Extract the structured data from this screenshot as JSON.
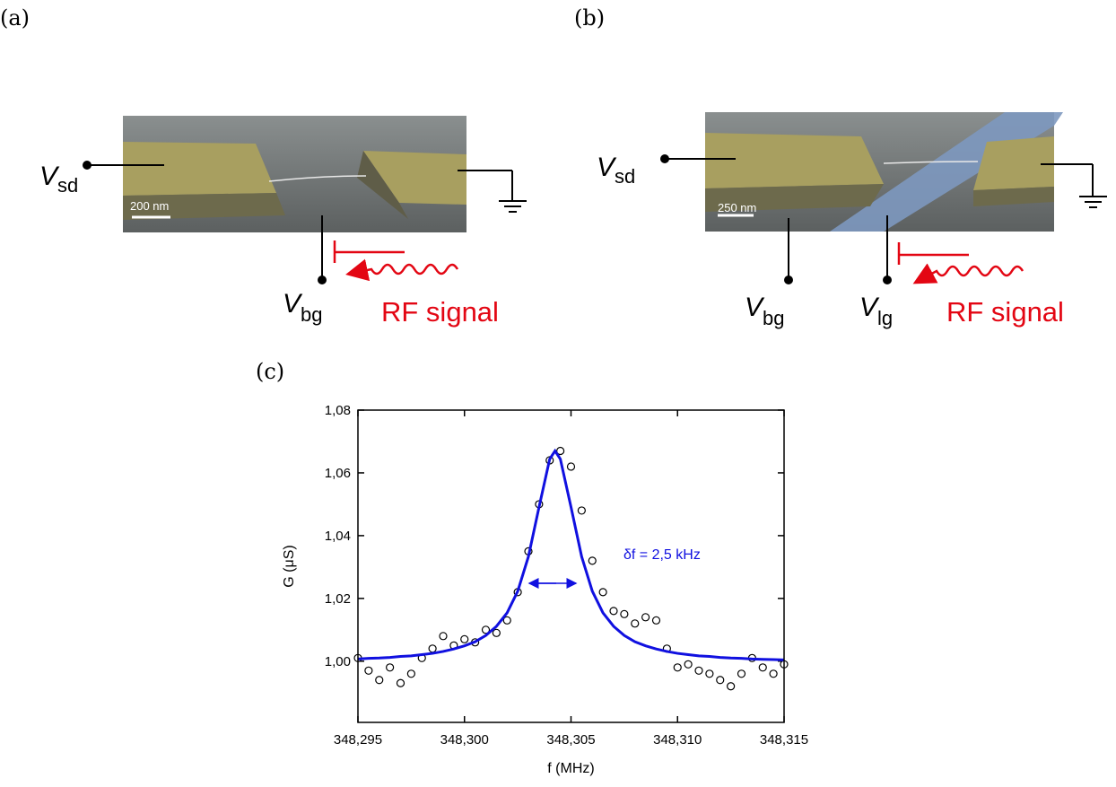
{
  "panel_labels": [
    "(a)",
    "(b)",
    "(c)"
  ],
  "panel_a": {
    "terminals": [
      {
        "symbol": "V",
        "subscript": "sd"
      },
      {
        "symbol": "V",
        "subscript": "bg"
      }
    ],
    "scale_bar": "200 nm",
    "signal": "RF signal"
  },
  "panel_b": {
    "terminals": [
      {
        "symbol": "V",
        "subscript": "sd"
      },
      {
        "symbol": "V",
        "subscript": "bg"
      },
      {
        "symbol": "V",
        "subscript": "lg"
      }
    ],
    "scale_bar": "250 nm",
    "signal": "RF signal"
  },
  "chart_data": {
    "type": "scatter",
    "x_label": "f (MHz)",
    "y_label": "G (μS)",
    "annotation": "δf = 2,5 kHz",
    "xlim": [
      348.295,
      348.315
    ],
    "ylim": [
      0.9805,
      1.08
    ],
    "xticks": [
      {
        "value": 348.295,
        "label": "348,295"
      },
      {
        "value": 348.3,
        "label": "348,300"
      },
      {
        "value": 348.305,
        "label": "348,305"
      },
      {
        "value": 348.31,
        "label": "348,310"
      },
      {
        "value": 348.315,
        "label": "348,315"
      }
    ],
    "yticks": [
      {
        "value": 1.0,
        "label": "1,00"
      },
      {
        "value": 1.02,
        "label": "1,02"
      },
      {
        "value": 1.04,
        "label": "1,04"
      },
      {
        "value": 1.06,
        "label": "1,06"
      },
      {
        "value": 1.08,
        "label": "1,08"
      }
    ],
    "series": [
      {
        "type": "scatter",
        "color": "#000000",
        "x": [
          348.295,
          348.2955,
          348.296,
          348.2965,
          348.297,
          348.2975,
          348.298,
          348.2985,
          348.299,
          348.2995,
          348.3,
          348.3005,
          348.301,
          348.3015,
          348.302,
          348.3025,
          348.303,
          348.3035,
          348.304,
          348.3045,
          348.305,
          348.3055,
          348.306,
          348.3065,
          348.307,
          348.3075,
          348.308,
          348.3085,
          348.309,
          348.3095,
          348.31,
          348.3105,
          348.311,
          348.3115,
          348.312,
          348.3125,
          348.313,
          348.3135,
          348.314,
          348.3145,
          348.315
        ],
        "values": [
          1.001,
          0.997,
          0.994,
          0.998,
          0.993,
          0.996,
          1.001,
          1.004,
          1.008,
          1.005,
          1.007,
          1.006,
          1.01,
          1.009,
          1.013,
          1.022,
          1.035,
          1.05,
          1.064,
          1.067,
          1.062,
          1.048,
          1.032,
          1.022,
          1.016,
          1.015,
          1.012,
          1.014,
          1.013,
          1.004,
          0.998,
          0.999,
          0.997,
          0.996,
          0.994,
          0.992,
          0.996,
          1.001,
          0.998,
          0.996,
          0.999
        ]
      },
      {
        "type": "line",
        "color": "#1010e0",
        "x": [
          348.295,
          348.2955,
          348.296,
          348.2965,
          348.297,
          348.2975,
          348.298,
          348.2985,
          348.299,
          348.2995,
          348.3,
          348.3005,
          348.301,
          348.3015,
          348.302,
          348.3025,
          348.303,
          348.3035,
          348.304,
          348.30425,
          348.3045,
          348.305,
          348.3055,
          348.306,
          348.3065,
          348.307,
          348.3075,
          348.308,
          348.3085,
          348.309,
          348.3095,
          348.31,
          348.3105,
          348.311,
          348.3115,
          348.312,
          348.3125,
          348.313,
          348.3135,
          348.314,
          348.3145,
          348.315
        ],
        "values": [
          1.0007,
          1.0009,
          1.001,
          1.0012,
          1.0015,
          1.0017,
          1.0021,
          1.0025,
          1.0031,
          1.0039,
          1.0049,
          1.0062,
          1.0082,
          1.0111,
          1.0154,
          1.0223,
          1.0333,
          1.0491,
          1.0644,
          1.067,
          1.0644,
          1.0491,
          1.0333,
          1.0223,
          1.0154,
          1.0111,
          1.0082,
          1.0062,
          1.0049,
          1.0039,
          1.0031,
          1.0025,
          1.0021,
          1.0017,
          1.0015,
          1.0012,
          1.001,
          1.0009,
          1.0007,
          1.0006,
          1.0005,
          1.0004
        ]
      }
    ]
  }
}
